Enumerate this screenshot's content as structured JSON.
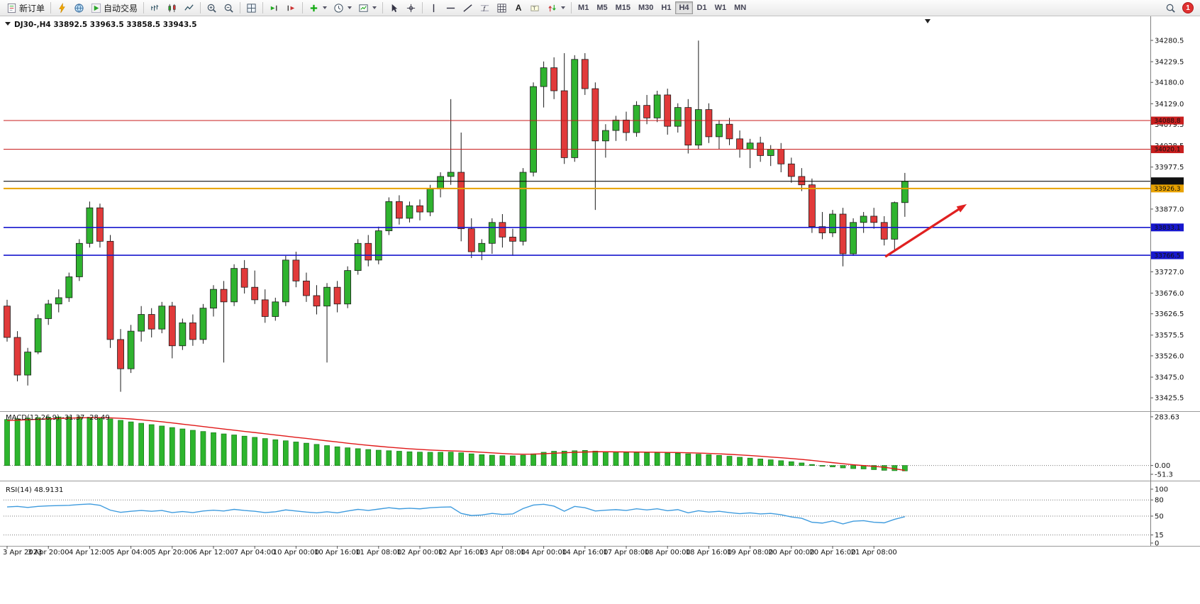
{
  "toolbar": {
    "new_order_label": "新订单",
    "autotrading_label": "自动交易",
    "text_tool_label": "A",
    "timeframes": [
      "M1",
      "M5",
      "M15",
      "M30",
      "H1",
      "H4",
      "D1",
      "W1",
      "MN"
    ],
    "active_timeframe": "H4",
    "notification_count": "1"
  },
  "chart": {
    "title_overlay": "DJ30-,H4 33892.5 33963.5 33858.5 33943.5",
    "symbol": "DJ30-",
    "timeframe": "H4"
  },
  "chart_data": {
    "type": "candlestick-ohlc",
    "symbol": "DJ30-",
    "timeframe": "H4",
    "grid": "off",
    "current_bar": {
      "open": 33892.5,
      "high": 33963.5,
      "low": 33858.5,
      "close": 33943.5
    },
    "price_axis": {
      "min": 33397,
      "max": 34333
    },
    "price_ticks": [
      "34280.5",
      "34229.5",
      "34180.0",
      "34129.0",
      "34079.5",
      "34028.5",
      "33977.5",
      "33877.0",
      "33727.0",
      "33676.0",
      "33626.5",
      "33575.5",
      "33526.0",
      "33475.0",
      "33425.5"
    ],
    "levels": [
      {
        "price": 34088.8,
        "label": "34088.8",
        "color": "#C81E1E",
        "width": 1
      },
      {
        "price": 34020.1,
        "label": "34020.1",
        "color": "#C81E1E",
        "width": 1
      },
      {
        "price": 33943.5,
        "label": "33943.5",
        "color": "#111111",
        "width": 1.2
      },
      {
        "price": 33926.3,
        "label": "33926.3",
        "color": "#E8A200",
        "width": 2
      },
      {
        "price": 33833.1,
        "label": "33833.1",
        "color": "#1717CE",
        "width": 1.6
      },
      {
        "price": 33766.5,
        "label": "33766.5",
        "color": "#1717CE",
        "width": 1.6
      }
    ],
    "colors": {
      "up": "#2FB32F",
      "down": "#E13A3A",
      "outline": "#1a1a1a",
      "macd_bar": "#2DB52D",
      "macd_signal": "#E01818",
      "rsi_line": "#3E9BDE"
    },
    "candles": [
      [
        33645,
        33660,
        33560,
        33570
      ],
      [
        33570,
        33585,
        33465,
        33480
      ],
      [
        33480,
        33545,
        33455,
        33535
      ],
      [
        33535,
        33625,
        33530,
        33615
      ],
      [
        33615,
        33660,
        33600,
        33650
      ],
      [
        33650,
        33685,
        33630,
        33665
      ],
      [
        33665,
        33725,
        33655,
        33715
      ],
      [
        33715,
        33805,
        33705,
        33795
      ],
      [
        33795,
        33895,
        33785,
        33880
      ],
      [
        33880,
        33890,
        33785,
        33800
      ],
      [
        33800,
        33815,
        33545,
        33565
      ],
      [
        33565,
        33590,
        33440,
        33495
      ],
      [
        33495,
        33600,
        33485,
        33585
      ],
      [
        33585,
        33645,
        33560,
        33625
      ],
      [
        33625,
        33640,
        33570,
        33590
      ],
      [
        33590,
        33655,
        33580,
        33645
      ],
      [
        33645,
        33655,
        33520,
        33550
      ],
      [
        33550,
        33615,
        33540,
        33605
      ],
      [
        33605,
        33625,
        33550,
        33565
      ],
      [
        33565,
        33650,
        33555,
        33640
      ],
      [
        33640,
        33695,
        33620,
        33685
      ],
      [
        33685,
        33705,
        33510,
        33655
      ],
      [
        33655,
        33745,
        33645,
        33735
      ],
      [
        33735,
        33755,
        33675,
        33690
      ],
      [
        33690,
        33730,
        33650,
        33660
      ],
      [
        33660,
        33685,
        33605,
        33620
      ],
      [
        33620,
        33665,
        33610,
        33655
      ],
      [
        33655,
        33765,
        33645,
        33755
      ],
      [
        33755,
        33775,
        33690,
        33705
      ],
      [
        33705,
        33725,
        33655,
        33670
      ],
      [
        33670,
        33695,
        33625,
        33645
      ],
      [
        33645,
        33700,
        33510,
        33690
      ],
      [
        33690,
        33705,
        33630,
        33650
      ],
      [
        33650,
        33740,
        33640,
        33730
      ],
      [
        33730,
        33805,
        33720,
        33795
      ],
      [
        33795,
        33815,
        33740,
        33755
      ],
      [
        33755,
        33835,
        33745,
        33825
      ],
      [
        33825,
        33905,
        33815,
        33895
      ],
      [
        33895,
        33910,
        33840,
        33855
      ],
      [
        33855,
        33895,
        33845,
        33885
      ],
      [
        33885,
        33900,
        33850,
        33870
      ],
      [
        33870,
        33935,
        33860,
        33925
      ],
      [
        33925,
        33965,
        33905,
        33955
      ],
      [
        33955,
        34140,
        33935,
        33965
      ],
      [
        33965,
        34060,
        33800,
        33830
      ],
      [
        33830,
        33855,
        33760,
        33775
      ],
      [
        33775,
        33805,
        33755,
        33795
      ],
      [
        33795,
        33855,
        33770,
        33845
      ],
      [
        33845,
        33865,
        33785,
        33810
      ],
      [
        33810,
        33830,
        33765,
        33800
      ],
      [
        33800,
        33975,
        33790,
        33965
      ],
      [
        33965,
        34180,
        33955,
        34170
      ],
      [
        34170,
        34230,
        34120,
        34215
      ],
      [
        34215,
        34240,
        34140,
        34160
      ],
      [
        34160,
        34250,
        33985,
        34000
      ],
      [
        34000,
        34245,
        33990,
        34235
      ],
      [
        34235,
        34250,
        34150,
        34165
      ],
      [
        34165,
        34180,
        33875,
        34040
      ],
      [
        34040,
        34080,
        34000,
        34065
      ],
      [
        34065,
        34100,
        34040,
        34090
      ],
      [
        34090,
        34110,
        34040,
        34060
      ],
      [
        34060,
        34135,
        34050,
        34125
      ],
      [
        34125,
        34150,
        34080,
        34095
      ],
      [
        34095,
        34160,
        34085,
        34150
      ],
      [
        34150,
        34165,
        34055,
        34075
      ],
      [
        34075,
        34130,
        34060,
        34120
      ],
      [
        34120,
        34140,
        34010,
        34030
      ],
      [
        34030,
        34280,
        34020,
        34115
      ],
      [
        34115,
        34130,
        34035,
        34050
      ],
      [
        34050,
        34090,
        34020,
        34080
      ],
      [
        34080,
        34095,
        34030,
        34045
      ],
      [
        34045,
        34065,
        34000,
        34020
      ],
      [
        34020,
        34045,
        33975,
        34035
      ],
      [
        34035,
        34050,
        33990,
        34005
      ],
      [
        34005,
        34030,
        33980,
        34020
      ],
      [
        34020,
        34035,
        33965,
        33985
      ],
      [
        33985,
        34000,
        33940,
        33955
      ],
      [
        33955,
        33975,
        33920,
        33935
      ],
      [
        33935,
        33950,
        33820,
        33835
      ],
      [
        33835,
        33870,
        33805,
        33820
      ],
      [
        33820,
        33875,
        33810,
        33865
      ],
      [
        33865,
        33880,
        33740,
        33770
      ],
      [
        33770,
        33855,
        33765,
        33845
      ],
      [
        33845,
        33870,
        33820,
        33860
      ],
      [
        33860,
        33880,
        33830,
        33845
      ],
      [
        33845,
        33860,
        33790,
        33805
      ],
      [
        33805,
        33895,
        33780,
        33892.5
      ],
      [
        33892.5,
        33963.5,
        33858.5,
        33943.5
      ]
    ],
    "time_labels": [
      "3 Apr 2023",
      "3 Apr 20:00",
      "4 Apr 12:00",
      "5 Apr 04:00",
      "5 Apr 20:00",
      "6 Apr 12:00",
      "7 Apr 04:00",
      "10 Apr 00:00",
      "10 Apr 16:00",
      "11 Apr 08:00",
      "12 Apr 00:00",
      "12 Apr 16:00",
      "13 Apr 08:00",
      "14 Apr 00:00",
      "14 Apr 16:00",
      "17 Apr 08:00",
      "18 Apr 00:00",
      "18 Apr 16:00",
      "19 Apr 08:00",
      "20 Apr 00:00",
      "20 Apr 16:00",
      "21 Apr 08:00"
    ],
    "indicators": {
      "macd": {
        "name": "MACD(12,26,9)",
        "values_text": "-31.37 -28.49",
        "scale": [
          "283.63",
          "0.00",
          "-51.3"
        ],
        "histogram": [
          268,
          272,
          276,
          279,
          281,
          282.5,
          283.6,
          283,
          281,
          277,
          271,
          263,
          254,
          246,
          238,
          230,
          221,
          213,
          205,
          198,
          191,
          184,
          178,
          171,
          164,
          157,
          150,
          144,
          137,
          130,
          123,
          116,
          109,
          103,
          98,
          93,
          89,
          86,
          83,
          80,
          78,
          77,
          77,
          78,
          74,
          68,
          63,
          60,
          57,
          56,
          60,
          68,
          77,
          83,
          84,
          86,
          88,
          84,
          80,
          78,
          76,
          76,
          75,
          75,
          73,
          72,
          68,
          66,
          63,
          59,
          54,
          48,
          43,
          38,
          33,
          28,
          22,
          15,
          6,
          -2,
          -8,
          -14,
          -18,
          -20,
          -24,
          -28,
          -30,
          -31.37
        ],
        "signal": [
          262,
          264,
          266.5,
          269,
          271.5,
          274,
          276,
          277.5,
          278.5,
          278.5,
          277.5,
          275,
          271,
          266,
          260.5,
          254.5,
          248,
          241,
          234,
          227,
          219.5,
          212.5,
          205.5,
          198.5,
          192,
          185,
          178,
          171,
          164,
          157.5,
          150.5,
          143.5,
          137,
          130,
          123.5,
          117.5,
          112,
          106.5,
          102,
          97.5,
          93.5,
          90,
          87.5,
          85.5,
          83.5,
          80.5,
          77,
          73.5,
          70,
          67,
          66,
          66.5,
          68.5,
          71.5,
          74,
          76.5,
          78.5,
          80,
          80,
          79.5,
          79,
          78.5,
          77.5,
          77,
          76,
          75.5,
          74,
          72.5,
          70.5,
          68,
          65,
          61.5,
          58,
          54,
          49.5,
          45,
          40.5,
          35.5,
          29.5,
          23,
          16.5,
          10.5,
          4.5,
          -0.5,
          -5,
          -10,
          -19,
          -28.49
        ]
      },
      "rsi": {
        "name": "RSI(14)",
        "values_text": "48.9131",
        "scale": [
          "100",
          "80",
          "50",
          "15",
          "0"
        ],
        "level_lines": [
          80,
          50,
          15
        ],
        "values": [
          67,
          68,
          66,
          68,
          69,
          69.5,
          70,
          71.5,
          72.5,
          70,
          61,
          57,
          59,
          60.5,
          59,
          60.5,
          56.5,
          58.5,
          56.5,
          59.5,
          61,
          59.5,
          62.5,
          60.5,
          59,
          56.5,
          58,
          61.5,
          59.5,
          57.5,
          56,
          58,
          56,
          59.5,
          62.5,
          60.5,
          63,
          65.5,
          63.5,
          64.5,
          63.5,
          65.5,
          66.5,
          67,
          55,
          51,
          52,
          55,
          53,
          54,
          64,
          70.5,
          72,
          68.5,
          59,
          68,
          65.5,
          59.5,
          61,
          62,
          60.5,
          63.5,
          61.5,
          63.5,
          60,
          62,
          56,
          60,
          57.5,
          59,
          56.5,
          54.5,
          56,
          54,
          55,
          52.5,
          48.5,
          46,
          38.5,
          37,
          41,
          35.5,
          40.5,
          41.5,
          38.5,
          37.5,
          44,
          48.91
        ]
      }
    },
    "arrow": {
      "from": {
        "bar": 85.1,
        "price": 33763
      },
      "to": {
        "bar": 93,
        "price": 33889
      },
      "color": "#E02020"
    }
  }
}
